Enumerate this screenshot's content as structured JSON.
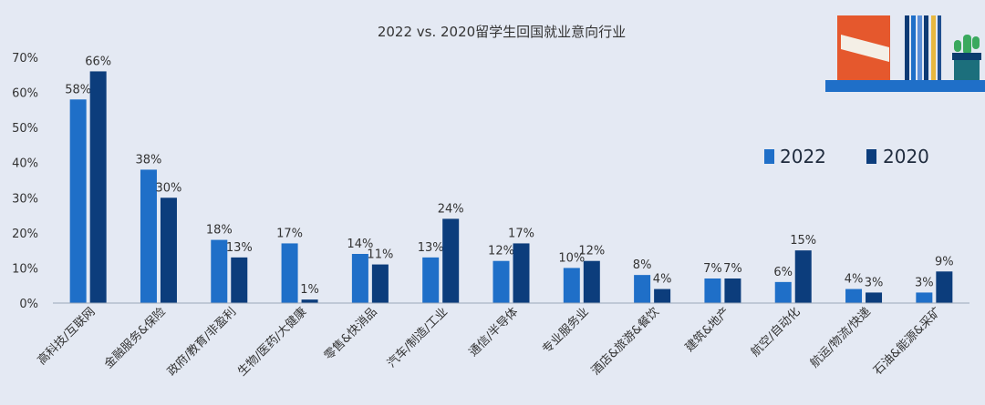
{
  "colors": {
    "background": "#e4e9f3",
    "series_2022": "#1f6fc8",
    "series_2020": "#0c3d7c",
    "text": "#333333",
    "shelf": "#1f6fc8",
    "book_orange": "#e5582d",
    "plant_green": "#3aa95e",
    "pot_teal": "#1c6f7c"
  },
  "chart_data": {
    "type": "bar",
    "title": "2022 vs. 2020留学生回国就业意向行业",
    "xlabel": "",
    "ylabel": "",
    "ylim": [
      0,
      70
    ],
    "yticks": [
      "0%",
      "10%",
      "20%",
      "30%",
      "40%",
      "50%",
      "60%",
      "70%"
    ],
    "grid": false,
    "legend_position": "right",
    "categories": [
      "高科技/互联网",
      "金融服务&保险",
      "政府/教育/非盈利",
      "生物/医药/大健康",
      "零售&快消品",
      "汽车/制造/工业",
      "通信/半导体",
      "专业服务业",
      "酒店&旅游&餐饮",
      "建筑&地产",
      "航空/自动化",
      "航运/物流/快递",
      "石油&能源&采矿"
    ],
    "series": [
      {
        "name": "2022",
        "values": [
          58,
          38,
          18,
          17,
          14,
          13,
          12,
          10,
          8,
          7,
          6,
          4,
          3
        ]
      },
      {
        "name": "2020",
        "values": [
          66,
          30,
          13,
          1,
          11,
          24,
          17,
          12,
          4,
          7,
          15,
          3,
          9
        ]
      }
    ]
  }
}
